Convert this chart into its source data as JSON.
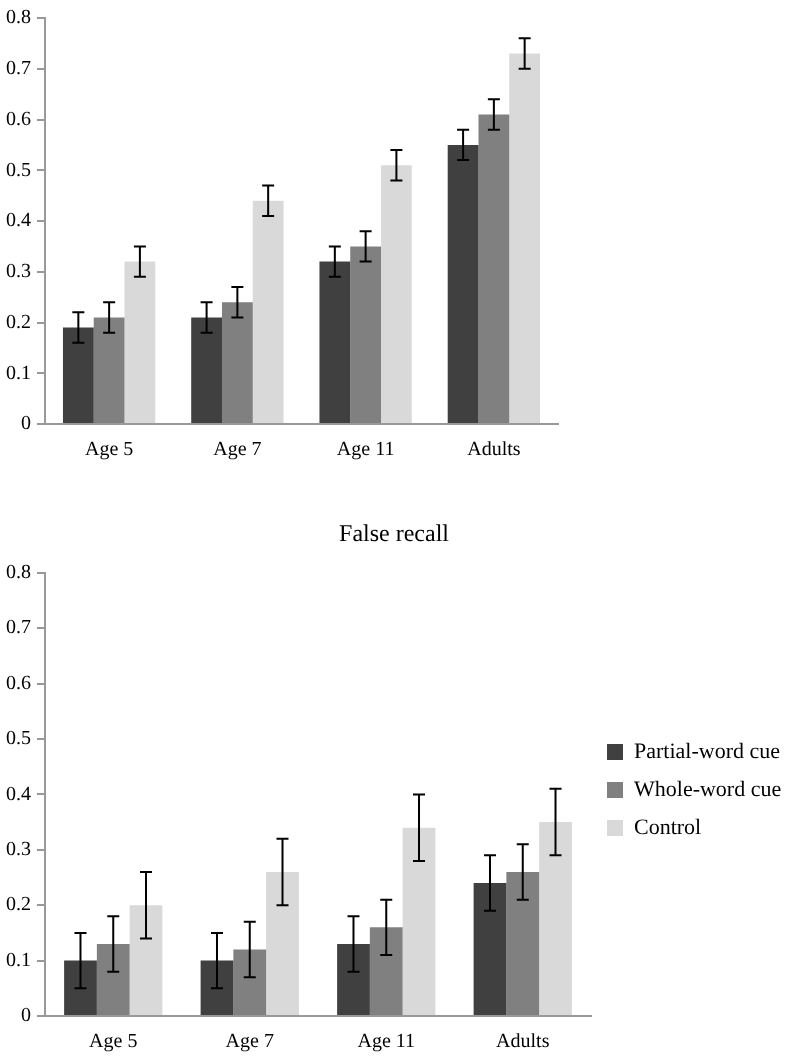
{
  "chart_data": [
    {
      "type": "bar",
      "categories": [
        "Age 5",
        "Age 7",
        "Age 11",
        "Adults"
      ],
      "ylim": [
        0,
        0.8
      ],
      "yticks": [
        0,
        0.1,
        0.2,
        0.3,
        0.4,
        0.5,
        0.6,
        0.7,
        0.8
      ],
      "grid": false,
      "legend": false,
      "series": [
        {
          "color": "#404040",
          "values": [
            0.19,
            0.21,
            0.32,
            0.55
          ],
          "errors": [
            0.03,
            0.03,
            0.03,
            0.03
          ]
        },
        {
          "color": "#808080",
          "values": [
            0.21,
            0.24,
            0.35,
            0.61
          ],
          "errors": [
            0.03,
            0.03,
            0.03,
            0.03
          ]
        },
        {
          "color": "#d9d9d9",
          "values": [
            0.32,
            0.44,
            0.51,
            0.73
          ],
          "errors": [
            0.03,
            0.03,
            0.03,
            0.03
          ]
        }
      ]
    },
    {
      "type": "bar",
      "title": "False recall",
      "categories": [
        "Age 5",
        "Age 7",
        "Age 11",
        "Adults"
      ],
      "ylim": [
        0,
        0.8
      ],
      "yticks": [
        0,
        0.1,
        0.2,
        0.3,
        0.4,
        0.5,
        0.6,
        0.7,
        0.8
      ],
      "grid": false,
      "legend": "right",
      "series": [
        {
          "name": "Partial-word cue",
          "color": "#404040",
          "values": [
            0.1,
            0.1,
            0.13,
            0.24
          ],
          "errors": [
            0.05,
            0.05,
            0.05,
            0.05
          ]
        },
        {
          "name": "Whole-word cue",
          "color": "#808080",
          "values": [
            0.13,
            0.12,
            0.16,
            0.26
          ],
          "errors": [
            0.05,
            0.05,
            0.05,
            0.05
          ]
        },
        {
          "name": "Control",
          "color": "#d9d9d9",
          "values": [
            0.2,
            0.26,
            0.34,
            0.35
          ],
          "errors": [
            0.06,
            0.06,
            0.06,
            0.06
          ]
        }
      ]
    }
  ]
}
